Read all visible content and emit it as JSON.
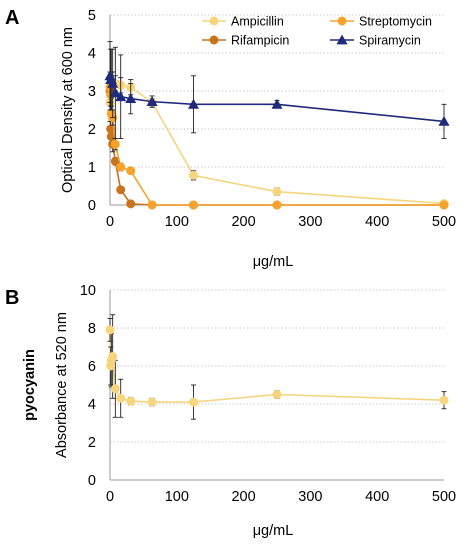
{
  "chart_data": [
    {
      "type": "line",
      "panel_label": "A",
      "xlabel": "μg/mL",
      "ylabel": "Optical Density at 600 nm",
      "xlim": [
        0,
        500
      ],
      "ylim": [
        0,
        5
      ],
      "xticks": [
        "0",
        "100",
        "200",
        "300",
        "400",
        "500"
      ],
      "yticks": [
        "0",
        "1",
        "2",
        "3",
        "4",
        "5"
      ],
      "grid": "horizontal dotted",
      "legend_position": "top-right",
      "series": [
        {
          "name": "Ampicillin",
          "marker": "circle",
          "color": "#F6D57E",
          "x": [
            0,
            1,
            2,
            4,
            8,
            16,
            31,
            63,
            125,
            250,
            500
          ],
          "y": [
            2.7,
            2.9,
            3.1,
            3.2,
            3.2,
            3.15,
            3.1,
            2.7,
            0.78,
            0.35,
            0.04
          ],
          "err": [
            0.5,
            0.4,
            0.3,
            0.3,
            0.2,
            0.2,
            0.2,
            0.1,
            0.12,
            0.1,
            0.03
          ]
        },
        {
          "name": "Rifampicin",
          "marker": "circle",
          "color": "#C8731E",
          "x": [
            0,
            1,
            2,
            4,
            8,
            16,
            31,
            63,
            125,
            250,
            500
          ],
          "y": [
            3.0,
            2.0,
            1.8,
            1.6,
            1.15,
            0.4,
            0.03,
            0.0,
            0.0,
            0.0,
            0.0
          ],
          "err": [
            0.3,
            0.2,
            0.2,
            0.2,
            0.1,
            0.05,
            0.02,
            0.0,
            0.0,
            0.0,
            0.0
          ]
        },
        {
          "name": "Streptomycin",
          "marker": "circle",
          "color": "#F5A32B",
          "x": [
            0,
            1,
            2,
            4,
            8,
            16,
            31,
            63,
            125,
            250,
            500
          ],
          "y": [
            3.1,
            2.9,
            2.4,
            2.3,
            1.6,
            1.0,
            0.9,
            0.0,
            0.0,
            0.0,
            0.0
          ],
          "err": [
            0.4,
            0.3,
            0.2,
            0.2,
            0.15,
            0.1,
            0.08,
            0.0,
            0.0,
            0.0,
            0.0
          ]
        },
        {
          "name": "Spiramycin",
          "marker": "triangle",
          "color": "#1F2A7A",
          "x": [
            0,
            1,
            2,
            4,
            8,
            16,
            31,
            63,
            125,
            250,
            500
          ],
          "y": [
            3.4,
            3.3,
            3.3,
            3.2,
            2.95,
            2.85,
            2.8,
            2.72,
            2.65,
            2.65,
            2.2
          ],
          "err": [
            0.9,
            0.8,
            0.8,
            0.9,
            1.2,
            1.1,
            0.4,
            0.15,
            0.75,
            0.1,
            0.45
          ]
        }
      ]
    },
    {
      "type": "line",
      "panel_label": "B",
      "xlabel": "μg/mL",
      "ylabel_bold": "pyocyanin",
      "ylabel": "Absorbance  at  520 nm",
      "xlim": [
        0,
        500
      ],
      "ylim": [
        0,
        10
      ],
      "xticks": [
        "0",
        "100",
        "200",
        "300",
        "400",
        "500"
      ],
      "yticks": [
        "0",
        "2",
        "4",
        "6",
        "8",
        "10"
      ],
      "grid": "horizontal dotted",
      "series": [
        {
          "marker": "circle",
          "color": "#F6D57E",
          "x": [
            0,
            1,
            2,
            4,
            8,
            16,
            31,
            63,
            125,
            250,
            500
          ],
          "y": [
            7.9,
            6.0,
            6.3,
            6.5,
            4.8,
            4.3,
            4.15,
            4.1,
            4.1,
            4.5,
            4.2
          ],
          "err": [
            0.6,
            1.0,
            1.4,
            2.2,
            1.5,
            1.0,
            0.2,
            0.2,
            0.9,
            0.2,
            0.45
          ]
        }
      ]
    }
  ]
}
